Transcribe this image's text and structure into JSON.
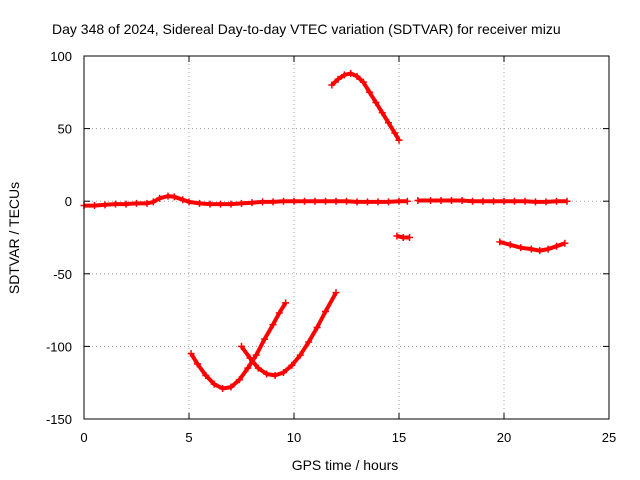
{
  "chart_data": {
    "type": "scatter",
    "title": "Day 348 of 2024, Sidereal Day-to-day VTEC variation (SDTVAR) for receiver mizu",
    "xlabel": "GPS time / hours",
    "ylabel": "SDTVAR / TECUs",
    "xlim": [
      0,
      25
    ],
    "ylim": [
      -150,
      100
    ],
    "xticks": [
      0,
      5,
      10,
      15,
      20,
      25
    ],
    "yticks": [
      -150,
      -100,
      -50,
      0,
      50,
      100
    ],
    "xtick_labels": [
      "0",
      "5",
      "10",
      "15",
      "20",
      "25"
    ],
    "ytick_labels": [
      "-150",
      "-100",
      "-50",
      "0",
      "50",
      "100"
    ],
    "grid": true,
    "series_color": "#ff0000",
    "series": [
      {
        "name": "main",
        "points": [
          [
            0.0,
            -3
          ],
          [
            0.5,
            -3
          ],
          [
            1.0,
            -2.5
          ],
          [
            1.5,
            -2
          ],
          [
            2.0,
            -2
          ],
          [
            2.5,
            -1.5
          ],
          [
            3.0,
            -1.5
          ],
          [
            3.3,
            -0.5
          ],
          [
            3.6,
            2
          ],
          [
            4.0,
            3.5
          ],
          [
            4.3,
            3
          ],
          [
            4.7,
            1
          ],
          [
            5.0,
            -0.5
          ],
          [
            5.5,
            -1.5
          ],
          [
            6.0,
            -2
          ],
          [
            6.5,
            -2
          ],
          [
            7.0,
            -2
          ],
          [
            7.5,
            -1.5
          ],
          [
            8.0,
            -1
          ],
          [
            8.5,
            -0.5
          ],
          [
            9.0,
            -0.5
          ],
          [
            9.5,
            0
          ],
          [
            10,
            0
          ],
          [
            10.5,
            0
          ],
          [
            11,
            0
          ],
          [
            11.5,
            0
          ],
          [
            12,
            0
          ],
          [
            12.5,
            0
          ],
          [
            13,
            -0.5
          ],
          [
            13.5,
            -0.5
          ],
          [
            14,
            -0.5
          ],
          [
            14.5,
            -0.5
          ],
          [
            15,
            0
          ],
          [
            15.4,
            0
          ]
        ]
      },
      {
        "name": "main-2",
        "points": [
          [
            15.9,
            0.5
          ],
          [
            16.5,
            0.5
          ],
          [
            17,
            0.5
          ],
          [
            17.5,
            0.5
          ],
          [
            18,
            0.5
          ],
          [
            18.5,
            0
          ],
          [
            19,
            0
          ],
          [
            19.5,
            0
          ],
          [
            20,
            0
          ],
          [
            20.5,
            0
          ],
          [
            21,
            0
          ],
          [
            21.5,
            -0.5
          ],
          [
            22,
            -0.5
          ],
          [
            22.5,
            0
          ],
          [
            23,
            0
          ]
        ]
      },
      {
        "name": "arc-high",
        "points": [
          [
            11.8,
            80
          ],
          [
            12.1,
            84
          ],
          [
            12.4,
            87
          ],
          [
            12.7,
            88
          ],
          [
            13.0,
            86
          ],
          [
            13.3,
            82
          ],
          [
            13.6,
            75
          ],
          [
            13.9,
            68
          ],
          [
            14.2,
            61
          ],
          [
            14.5,
            54
          ],
          [
            14.8,
            47
          ],
          [
            15.0,
            42
          ]
        ]
      },
      {
        "name": "short-15",
        "points": [
          [
            14.9,
            -24
          ],
          [
            15.2,
            -25
          ],
          [
            15.5,
            -25
          ]
        ]
      },
      {
        "name": "arc-20-23",
        "points": [
          [
            19.8,
            -28
          ],
          [
            20.3,
            -30
          ],
          [
            20.8,
            -32
          ],
          [
            21.3,
            -33
          ],
          [
            21.7,
            -34
          ],
          [
            22.1,
            -33
          ],
          [
            22.5,
            -31
          ],
          [
            22.9,
            -29
          ]
        ]
      },
      {
        "name": "arc-low-1",
        "points": [
          [
            5.1,
            -105
          ],
          [
            5.4,
            -112
          ],
          [
            5.8,
            -120
          ],
          [
            6.2,
            -126
          ],
          [
            6.6,
            -129
          ],
          [
            7.0,
            -128
          ],
          [
            7.4,
            -123
          ],
          [
            7.8,
            -115
          ],
          [
            8.2,
            -106
          ],
          [
            8.6,
            -95
          ],
          [
            9.0,
            -85
          ],
          [
            9.3,
            -77
          ],
          [
            9.6,
            -70
          ]
        ]
      },
      {
        "name": "arc-low-2",
        "points": [
          [
            7.5,
            -100
          ],
          [
            7.9,
            -108
          ],
          [
            8.3,
            -115
          ],
          [
            8.7,
            -119
          ],
          [
            9.1,
            -120
          ],
          [
            9.5,
            -118
          ],
          [
            9.9,
            -113
          ],
          [
            10.3,
            -106
          ],
          [
            10.7,
            -97
          ],
          [
            11.1,
            -87
          ],
          [
            11.5,
            -76
          ],
          [
            12.0,
            -63
          ]
        ]
      }
    ]
  }
}
